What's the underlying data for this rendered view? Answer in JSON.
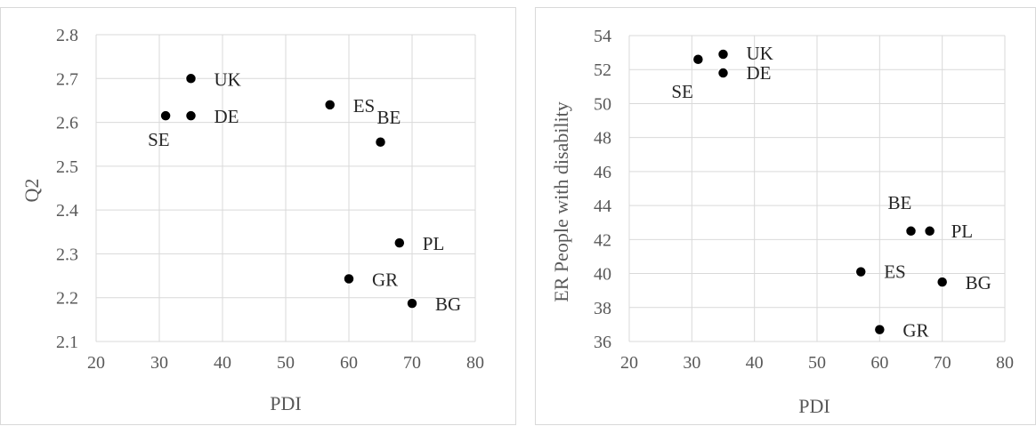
{
  "chart_data": [
    {
      "type": "scatter",
      "title": "",
      "xlabel": "PDI",
      "ylabel": "Q2",
      "xlim": [
        20,
        80
      ],
      "ylim": [
        2.1,
        2.8
      ],
      "xticks": [
        "20",
        "30",
        "40",
        "50",
        "60",
        "70",
        "80"
      ],
      "yticks": [
        "2.1",
        "2.2",
        "2.3",
        "2.4",
        "2.5",
        "2.6",
        "2.7",
        "2.8"
      ],
      "grid": true,
      "legend": "none",
      "points": [
        {
          "label": "UK",
          "x": 35,
          "y": 2.7
        },
        {
          "label": "DE",
          "x": 35,
          "y": 2.615
        },
        {
          "label": "SE",
          "x": 31,
          "y": 2.615
        },
        {
          "label": "ES",
          "x": 57,
          "y": 2.64
        },
        {
          "label": "BE",
          "x": 65,
          "y": 2.555
        },
        {
          "label": "PL",
          "x": 68,
          "y": 2.325
        },
        {
          "label": "GR",
          "x": 60,
          "y": 2.243
        },
        {
          "label": "BG",
          "x": 70,
          "y": 2.187
        }
      ]
    },
    {
      "type": "scatter",
      "title": "",
      "xlabel": "PDI",
      "ylabel": "ER People with disability",
      "xlim": [
        20,
        80
      ],
      "ylim": [
        36,
        54
      ],
      "xticks": [
        "20",
        "30",
        "40",
        "50",
        "60",
        "70",
        "80"
      ],
      "yticks": [
        "36",
        "38",
        "40",
        "42",
        "44",
        "46",
        "48",
        "50",
        "52",
        "54"
      ],
      "grid": true,
      "legend": "none",
      "points": [
        {
          "label": "UK",
          "x": 35,
          "y": 52.9
        },
        {
          "label": "DE",
          "x": 35,
          "y": 51.8
        },
        {
          "label": "SE",
          "x": 31,
          "y": 52.6
        },
        {
          "label": "BE",
          "x": 65,
          "y": 42.5
        },
        {
          "label": "PL",
          "x": 68,
          "y": 42.5
        },
        {
          "label": "ES",
          "x": 57,
          "y": 40.1
        },
        {
          "label": "BG",
          "x": 70,
          "y": 39.5
        },
        {
          "label": "GR",
          "x": 60,
          "y": 36.7
        }
      ]
    }
  ]
}
